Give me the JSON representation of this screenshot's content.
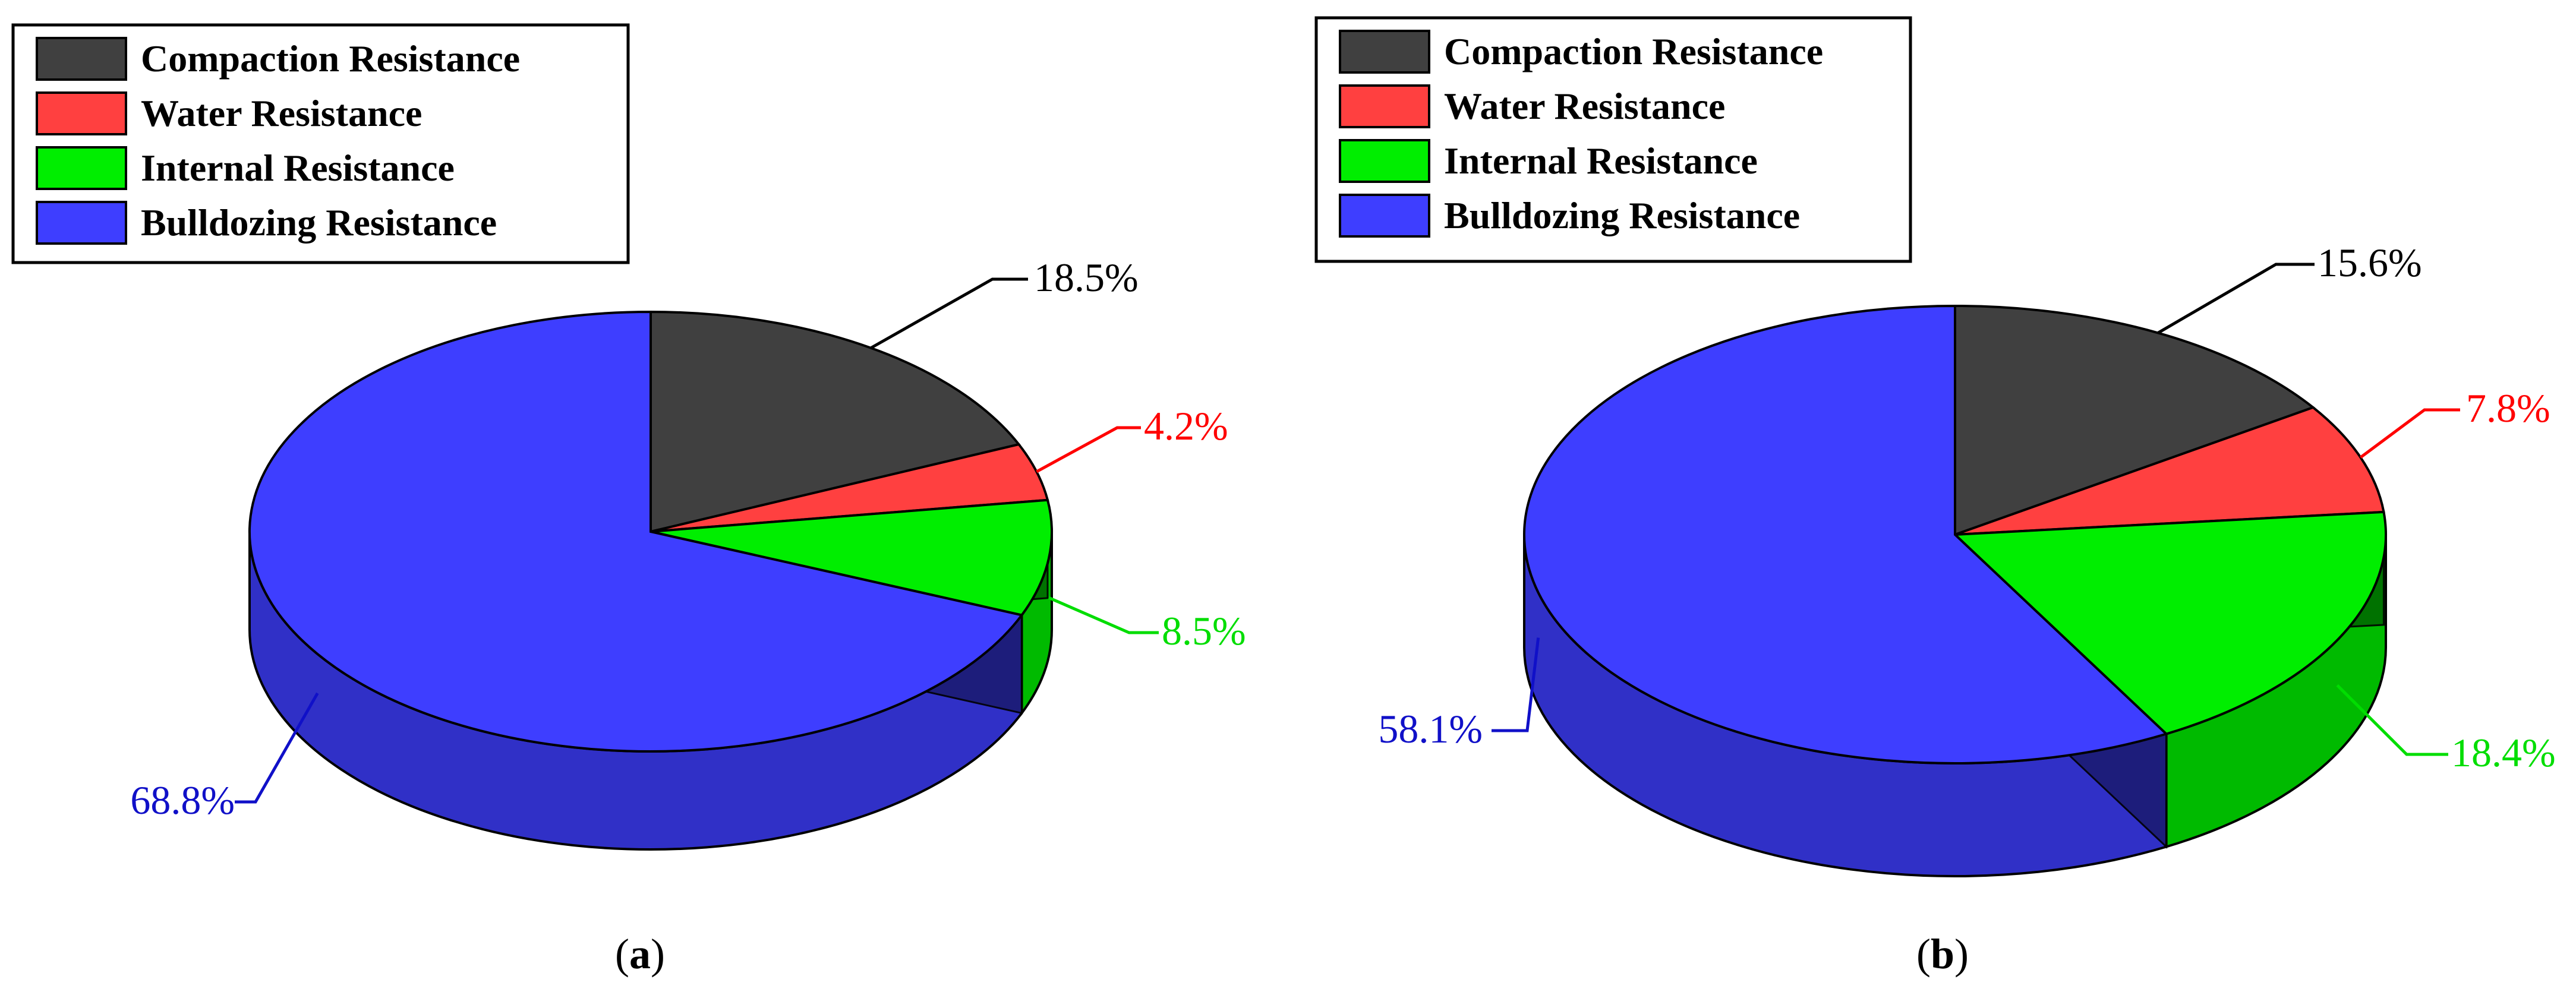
{
  "colors": {
    "compaction": "#404040",
    "water": "#ff4040",
    "internal": "#00ee00",
    "bulldozing": "#3e3eff",
    "label_compaction": "#000000",
    "label_water": "#ff0000",
    "label_internal": "#00dd00",
    "label_bulldozing": "#1010c8"
  },
  "chart_data": [
    {
      "type": "pie",
      "style": "3d",
      "caption_letter": "a",
      "legend": [
        "Compaction Resistance",
        "Water Resistance",
        "Internal Resistance",
        "Bulldozing Resistance"
      ],
      "legend_placement": "top-left",
      "slices": [
        {
          "name": "Compaction Resistance",
          "value": 18.5,
          "label": "18.5%"
        },
        {
          "name": "Water Resistance",
          "value": 4.2,
          "label": "4.2%"
        },
        {
          "name": "Internal Resistance",
          "value": 8.5,
          "label": "8.5%"
        },
        {
          "name": "Bulldozing Resistance",
          "value": 68.8,
          "label": "68.8%"
        }
      ]
    },
    {
      "type": "pie",
      "style": "3d",
      "caption_letter": "b",
      "legend": [
        "Compaction Resistance",
        "Water Resistance",
        "Internal Resistance",
        "Bulldozing Resistance"
      ],
      "legend_placement": "top-left",
      "slices": [
        {
          "name": "Compaction Resistance",
          "value": 15.6,
          "label": "15.6%"
        },
        {
          "name": "Water Resistance",
          "value": 7.8,
          "label": "7.8%"
        },
        {
          "name": "Internal Resistance",
          "value": 18.4,
          "label": "18.4%"
        },
        {
          "name": "Bulldozing Resistance",
          "value": 58.1,
          "label": "58.1%"
        }
      ]
    }
  ]
}
